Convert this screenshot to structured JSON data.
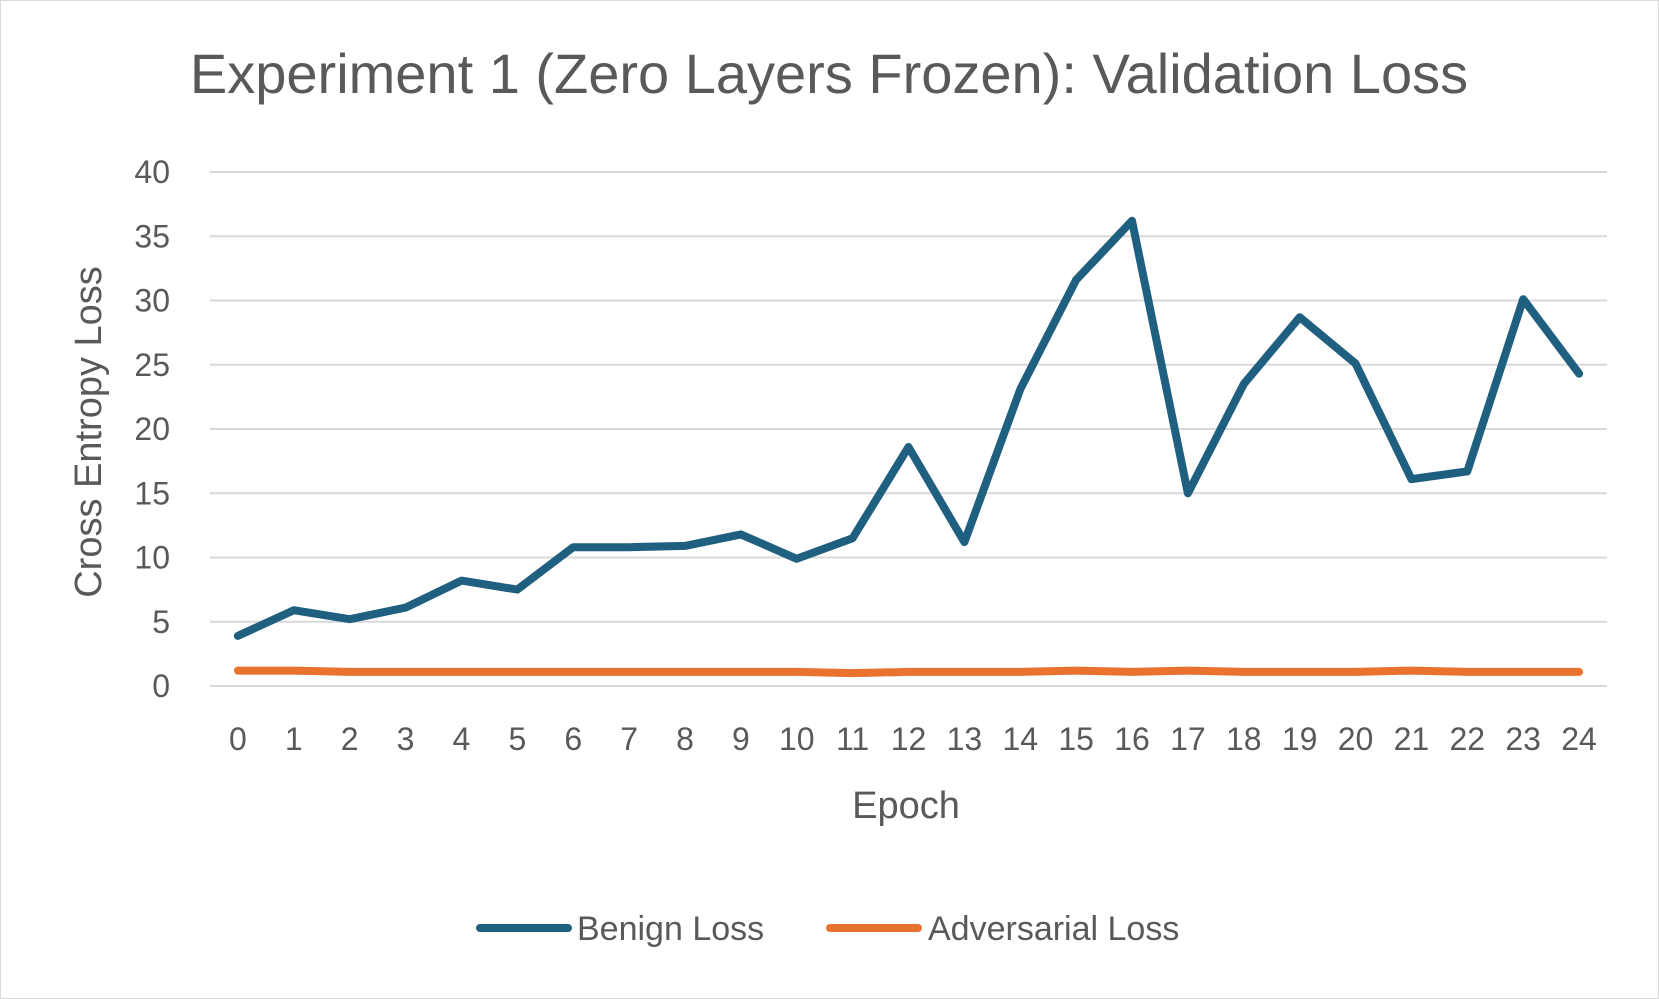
{
  "chart_data": {
    "type": "line",
    "title": "Experiment 1 (Zero Layers Frozen): Validation Loss",
    "xlabel": "Epoch",
    "ylabel": "Cross Entropy Loss",
    "categories": [
      "0",
      "1",
      "2",
      "3",
      "4",
      "5",
      "6",
      "7",
      "8",
      "9",
      "10",
      "11",
      "12",
      "13",
      "14",
      "15",
      "16",
      "17",
      "18",
      "19",
      "20",
      "21",
      "22",
      "23",
      "24"
    ],
    "y_ticks": [
      "0",
      "5",
      "10",
      "15",
      "20",
      "25",
      "30",
      "35",
      "40"
    ],
    "ylim": [
      0,
      40
    ],
    "grid": true,
    "legend_position": "bottom",
    "series": [
      {
        "name": "Benign Loss",
        "color": "#1f5f7f",
        "values": [
          3.9,
          5.9,
          5.2,
          6.1,
          8.2,
          7.5,
          10.8,
          10.8,
          10.9,
          11.8,
          9.9,
          11.5,
          18.6,
          11.2,
          23.1,
          31.6,
          36.2,
          15.0,
          23.5,
          28.7,
          25.1,
          16.1,
          16.7,
          30.1,
          24.3
        ]
      },
      {
        "name": "Adversarial Loss",
        "color": "#e9722e",
        "values": [
          1.2,
          1.2,
          1.1,
          1.1,
          1.1,
          1.1,
          1.1,
          1.1,
          1.1,
          1.1,
          1.1,
          1.0,
          1.1,
          1.1,
          1.1,
          1.2,
          1.1,
          1.2,
          1.1,
          1.1,
          1.1,
          1.2,
          1.1,
          1.1,
          1.1
        ]
      }
    ]
  }
}
